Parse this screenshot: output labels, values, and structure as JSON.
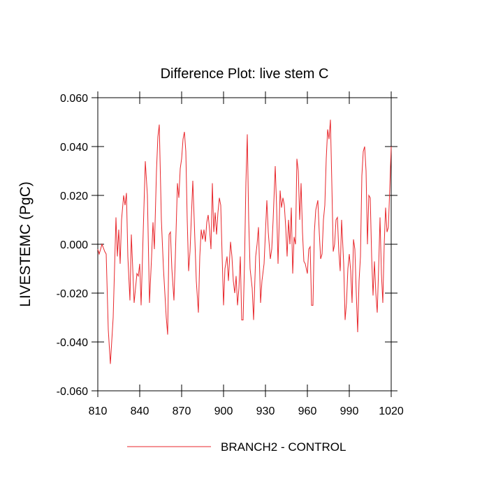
{
  "chart_data": {
    "type": "line",
    "title": "Difference Plot: live stem C",
    "y_label": "LIVESTEMC  (PgC)",
    "xlim": [
      810,
      1020
    ],
    "ylim": [
      -0.06,
      0.06
    ],
    "xticks": [
      810,
      840,
      870,
      900,
      930,
      960,
      990,
      1020
    ],
    "yticks": [
      {
        "value": -0.06,
        "label": "-0.060"
      },
      {
        "value": -0.04,
        "label": "-0.040"
      },
      {
        "value": -0.02,
        "label": "-0.020"
      },
      {
        "value": 0,
        "label": "0.000"
      },
      {
        "value": 0.02,
        "label": "0.020"
      },
      {
        "value": 0.04,
        "label": "0.040"
      },
      {
        "value": 0.06,
        "label": "0.060"
      }
    ],
    "grid": false,
    "legend": "bottom",
    "x": [
      810,
      811,
      813,
      815,
      816,
      817.5,
      819,
      821,
      823,
      824,
      825,
      826,
      827,
      828.5,
      829.5,
      830.5,
      831.5,
      833,
      834,
      835,
      836,
      838,
      839,
      840,
      841,
      842.5,
      844,
      845.5,
      847,
      848.5,
      849.5,
      850.5,
      852,
      853,
      854,
      855.5,
      857,
      858,
      859,
      860,
      861,
      862,
      863,
      864.5,
      865.5,
      867,
      868,
      869,
      870,
      871,
      872,
      873,
      874,
      875,
      876,
      878,
      879,
      880.5,
      882,
      883,
      884,
      885,
      886,
      887,
      888,
      889,
      890,
      891,
      892,
      893,
      894,
      895,
      896,
      897,
      898,
      899,
      900,
      901,
      902.5,
      903.5,
      905,
      906,
      907,
      908,
      909,
      910,
      911,
      912,
      913,
      914,
      915,
      916,
      917,
      918,
      919,
      920.5,
      921.5,
      923,
      924,
      925,
      926.5,
      927.5,
      929,
      930,
      931,
      932,
      933.5,
      934.5,
      935.5,
      937,
      938,
      939,
      940.5,
      941.5,
      942.5,
      943.5,
      944.5,
      945.5,
      946.5,
      947.5,
      948.5,
      949.5,
      950.5,
      951.5,
      952.5,
      953.5,
      954.5,
      955.5,
      956.5,
      957.5,
      958.5,
      960,
      961,
      962,
      963,
      964,
      965,
      966,
      967.5,
      968.5,
      969.5,
      970.5,
      971.5,
      972.5,
      973.5,
      974.5,
      975.5,
      976.5,
      977.5,
      978.5,
      979.5,
      980.5,
      981.5,
      982.5,
      983.5,
      984.5,
      986,
      987,
      988,
      989,
      990,
      991,
      992,
      993,
      994,
      995,
      996,
      997,
      998,
      999,
      1000,
      1001,
      1002,
      1003,
      1004,
      1005,
      1006,
      1007,
      1008,
      1009,
      1010,
      1011,
      1012,
      1013,
      1014,
      1015,
      1016,
      1017,
      1018,
      1020
    ],
    "series": [
      {
        "name": "BRANCH2 - CONTROL",
        "color": "#e8262b",
        "values": [
          -0.002,
          -0.004,
          0.0,
          -0.003,
          -0.004,
          -0.035,
          -0.049,
          -0.03,
          0.011,
          -0.005,
          0.006,
          -0.008,
          0.01,
          0.02,
          0.016,
          0.021,
          -0.005,
          -0.023,
          0.004,
          -0.01,
          -0.024,
          -0.012,
          -0.013,
          -0.008,
          -0.025,
          0.005,
          0.034,
          0.02,
          -0.024,
          -0.005,
          0.009,
          -0.002,
          0.03,
          0.044,
          0.049,
          0.01,
          -0.01,
          -0.02,
          -0.03,
          -0.037,
          0.004,
          0.005,
          -0.01,
          -0.023,
          -0.005,
          0.025,
          0.019,
          0.031,
          0.035,
          0.043,
          0.046,
          0.038,
          0.01,
          -0.011,
          -0.003,
          0.026,
          0.01,
          -0.015,
          -0.028,
          -0.005,
          0.006,
          0.002,
          0.006,
          0.001,
          0.009,
          0.012,
          0.006,
          -0.002,
          0.025,
          0.005,
          0.013,
          0.004,
          0.013,
          0.019,
          0.016,
          -0.005,
          -0.025,
          -0.01,
          -0.005,
          -0.015,
          0.001,
          -0.005,
          -0.015,
          -0.02,
          -0.013,
          -0.025,
          -0.018,
          -0.005,
          -0.031,
          -0.031,
          -0.008,
          0.025,
          0.045,
          0.01,
          -0.01,
          -0.018,
          -0.031,
          -0.005,
          0.0,
          0.007,
          -0.024,
          -0.015,
          -0.008,
          0.005,
          0.018,
          0.005,
          -0.006,
          -0.002,
          0.01,
          0.032,
          0.015,
          -0.008,
          0.022,
          0.015,
          0.019,
          0.016,
          0.007,
          -0.005,
          0.01,
          0.0,
          0.015,
          -0.012,
          0.003,
          0.0,
          0.035,
          0.03,
          0.01,
          0.025,
          0.005,
          -0.007,
          -0.008,
          -0.012,
          -0.002,
          -0.001,
          -0.025,
          -0.025,
          0.005,
          0.014,
          0.018,
          0.005,
          -0.006,
          -0.004,
          0.01,
          0.016,
          0.035,
          0.047,
          0.043,
          0.051,
          0.025,
          -0.003,
          0.0,
          0.01,
          0.011,
          -0.003,
          -0.011,
          0.01,
          -0.008,
          -0.031,
          -0.024,
          -0.01,
          -0.004,
          -0.011,
          -0.024,
          0.002,
          -0.002,
          -0.02,
          -0.036,
          -0.015,
          -0.005,
          0.028,
          0.038,
          0.04,
          0.03,
          0.0,
          0.02,
          0.019,
          -0.005,
          -0.021,
          -0.007,
          -0.02,
          -0.028,
          -0.01,
          0.011,
          -0.012,
          -0.024,
          0.0,
          0.015,
          0.005,
          0.007,
          0.04
        ]
      }
    ]
  }
}
